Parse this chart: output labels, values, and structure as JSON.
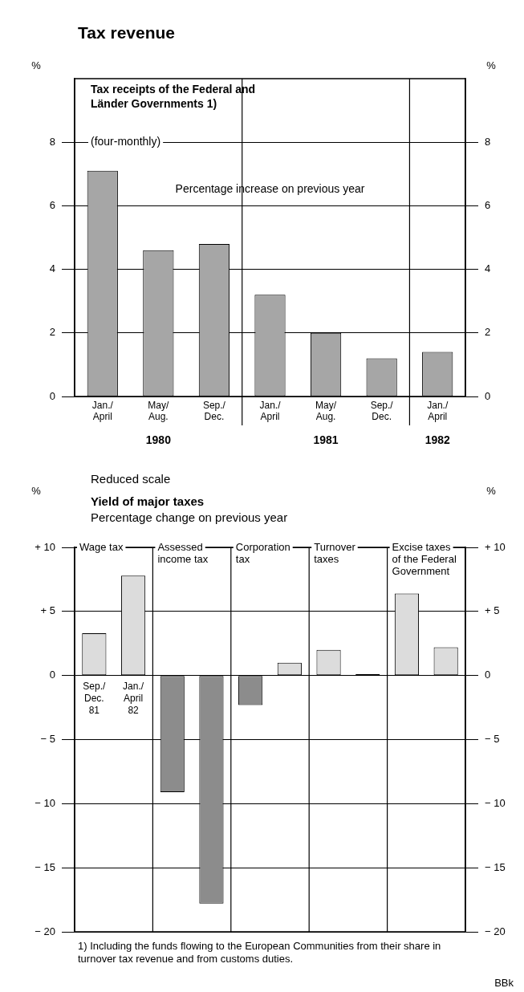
{
  "chart_data": [
    {
      "type": "bar",
      "title": "Tax revenue",
      "subtitle": "Tax receipts of the Federal and Länder Governments 1)",
      "categories": [
        "Jan./ April",
        "May/ Aug.",
        "Sep./ Dec.",
        "Jan./ April",
        "May/ Aug.",
        "Sep./ Dec.",
        "Jan./ April"
      ],
      "values": [
        7.1,
        4.6,
        4.8,
        3.2,
        2.0,
        1.2,
        1.4
      ],
      "color": "#a6a6a6",
      "ylim": [
        0,
        10
      ],
      "yticks": [
        0,
        2,
        4,
        6,
        8
      ],
      "y2lim": [
        0,
        10
      ],
      "y2ticks": [
        0,
        2,
        4,
        6,
        8
      ],
      "ylabel": "%",
      "y2label": "%",
      "grid": "y",
      "annotations": [
        "(four-monthly)",
        "Percentage increase on previous year",
        "1980",
        "1981",
        "1982"
      ]
    },
    {
      "type": "bar",
      "title": "Yield of major taxes",
      "subtitle": "Percentage change on previous year",
      "categories": [
        "Sep./ Dec. 81",
        "Jan./ April 82",
        null,
        null,
        null,
        null,
        null,
        null,
        null,
        null
      ],
      "values": [
        3.3,
        7.8,
        -9.1,
        -17.8,
        -2.3,
        1.0,
        2.0,
        0.1,
        6.4,
        2.2
      ],
      "colors": [
        "#dcdcdc",
        "#dcdcdc",
        "#8c8c8c",
        "#8c8c8c",
        "#8c8c8c",
        "#dcdcdc",
        "#dcdcdc",
        "#000000",
        "#dcdcdc",
        "#dcdcdc"
      ],
      "ylim": [
        -20,
        10
      ],
      "yticks": [
        {
          "value": 10,
          "label": "+ 10"
        },
        {
          "value": 5,
          "label": "+ 5"
        },
        0,
        {
          "value": -5,
          "label": "− 5"
        },
        {
          "value": -10,
          "label": "− 10"
        },
        {
          "value": -15,
          "label": "− 15"
        },
        {
          "value": -20,
          "label": "− 20"
        }
      ],
      "y2lim": [
        -20,
        10
      ],
      "y2ticks": [
        {
          "value": 10,
          "label": "+ 10"
        },
        {
          "value": 5,
          "label": "+ 5"
        },
        0,
        {
          "value": -5,
          "label": "− 5"
        },
        {
          "value": -10,
          "label": "− 10"
        },
        {
          "value": -15,
          "label": "− 15"
        },
        {
          "value": -20,
          "label": "− 20"
        }
      ],
      "ylabel": "%",
      "y2label": "%",
      "grid": "y",
      "annotations": [
        "Reduced scale",
        "Wage tax",
        "Assessed income tax",
        "Corporation tax",
        "Turnover taxes",
        "Excise taxes of the Federal Government",
        "1) Including the funds flowing to the European Communities from their share in turnover tax revenue and from customs duties.",
        "BBk"
      ]
    }
  ]
}
